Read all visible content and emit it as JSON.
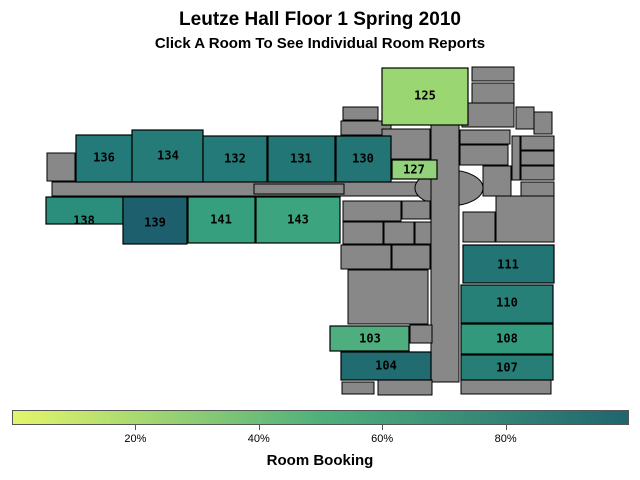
{
  "title": "Leutze Hall Floor 1 Spring 2010",
  "subtitle": "Click A Room To See Individual Room Reports",
  "legend": {
    "title": "Room Booking",
    "ticks": [
      "20%",
      "40%",
      "60%",
      "80%"
    ],
    "tick_values": [
      20,
      40,
      60,
      80
    ],
    "min": 0,
    "max": 100,
    "color_low": "#e4f56a",
    "color_mid": "#4fb07c",
    "color_high": "#1f6570"
  },
  "colors": {
    "building_gray": "#888888"
  },
  "rooms": [
    {
      "id": "125",
      "label": "125",
      "color": "#9ad672"
    },
    {
      "id": "136",
      "label": "136",
      "color": "#237a78"
    },
    {
      "id": "134",
      "label": "134",
      "color": "#247b78"
    },
    {
      "id": "132",
      "label": "132",
      "color": "#237a78"
    },
    {
      "id": "131",
      "label": "131",
      "color": "#227776"
    },
    {
      "id": "130",
      "label": "130",
      "color": "#237575"
    },
    {
      "id": "127",
      "label": "127",
      "color": "#91d27a"
    },
    {
      "id": "138",
      "label": "138",
      "color": "#2b8e7c"
    },
    {
      "id": "139",
      "label": "139",
      "color": "#1d5f6d"
    },
    {
      "id": "141",
      "label": "141",
      "color": "#369f7e"
    },
    {
      "id": "143",
      "label": "143",
      "color": "#3ca580"
    },
    {
      "id": "111",
      "label": "111",
      "color": "#227574"
    },
    {
      "id": "110",
      "label": "110",
      "color": "#268078"
    },
    {
      "id": "108",
      "label": "108",
      "color": "#33997d"
    },
    {
      "id": "103",
      "label": "103",
      "color": "#4eae7e"
    },
    {
      "id": "104",
      "label": "104",
      "color": "#216c71"
    },
    {
      "id": "107",
      "label": "107",
      "color": "#277e77"
    }
  ]
}
